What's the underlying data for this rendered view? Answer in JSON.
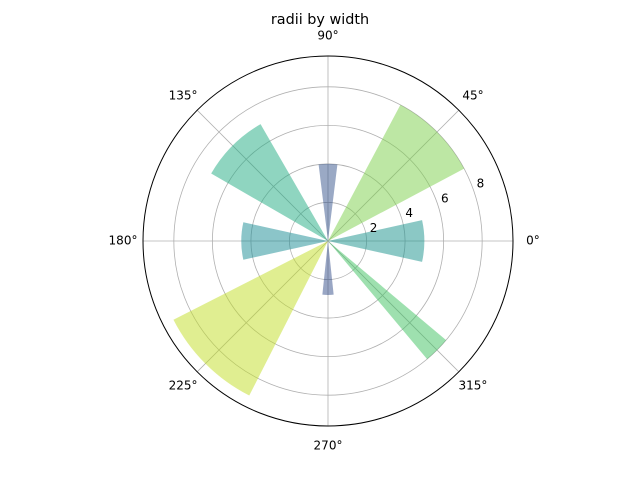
{
  "chart_data": {
    "type": "bar",
    "projection": "polar",
    "title": "radii by width",
    "theta_ticks": [
      "0°",
      "45°",
      "90°",
      "135°",
      "180°",
      "225°",
      "270°",
      "315°"
    ],
    "r_ticks": [
      "2",
      "4",
      "6",
      "8"
    ],
    "r_label_angle_deg": 22.5,
    "rlim": [
      0,
      9.6
    ],
    "grid": true,
    "alpha": 0.5,
    "bars": [
      {
        "theta_deg": 0,
        "width_deg": 25,
        "radius": 5.0,
        "color": "#17928b"
      },
      {
        "theta_deg": 45,
        "width_deg": 34,
        "radius": 8.0,
        "color": "#7ccf4a"
      },
      {
        "theta_deg": 90,
        "width_deg": 14,
        "radius": 4.0,
        "color": "#36538b"
      },
      {
        "theta_deg": 135,
        "width_deg": 30,
        "radius": 7.0,
        "color": "#1fab82"
      },
      {
        "theta_deg": 180,
        "width_deg": 25,
        "radius": 4.5,
        "color": "#178c93"
      },
      {
        "theta_deg": 225,
        "width_deg": 36,
        "radius": 9.0,
        "color": "#c2de24"
      },
      {
        "theta_deg": 270,
        "width_deg": 12,
        "radius": 2.8,
        "color": "#344e8a"
      },
      {
        "theta_deg": 315,
        "width_deg": 10,
        "radius": 8.0,
        "color": "#3ec160"
      }
    ]
  }
}
